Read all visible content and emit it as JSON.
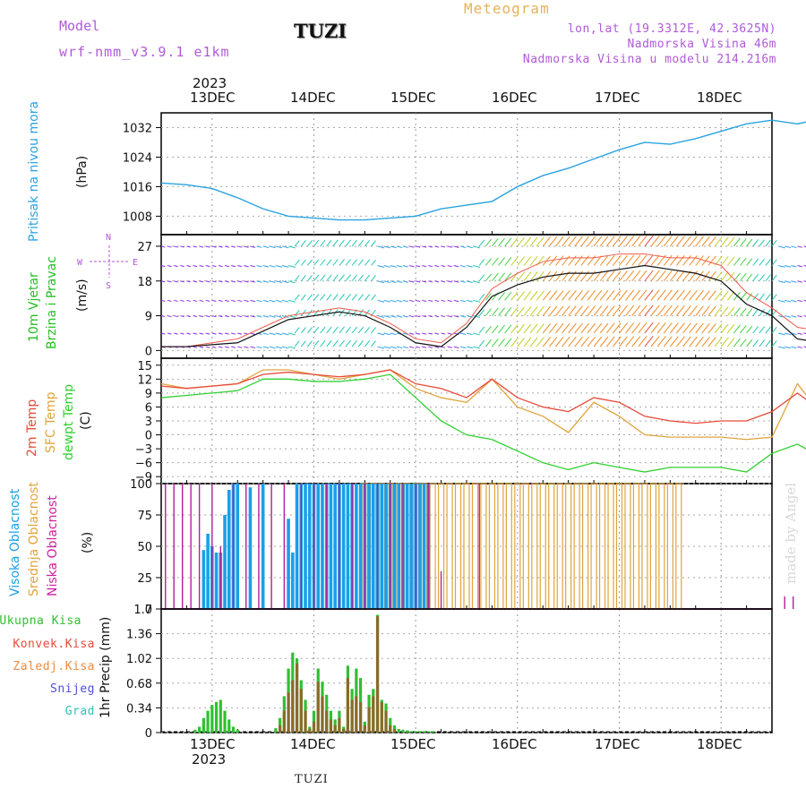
{
  "header": {
    "model_label": "Model",
    "model_name": "wrf-nmm_v3.9.1 e1km",
    "station": "TUZI",
    "meteogram": "Meteogram",
    "lonlat": "lon,lat (19.3312E, 42.3625N)",
    "elevation": "Nadmorska Visina 46m",
    "model_elevation": "Nadmorska Visina u modelu 214.216m"
  },
  "colors": {
    "pressure": "#29a3e0",
    "wind_label": "#22c022",
    "temp2m": "#e84a3a",
    "sfc": "#e0a43c",
    "dewpt": "#30d030",
    "high_cloud": "#1aa0e8",
    "mid_cloud": "#e0a43c",
    "low_cloud": "#b41e9a",
    "purple_text": "#b05ad8"
  },
  "time_axis": {
    "year": "2023",
    "dates": [
      "13DEC",
      "14DEC",
      "15DEC",
      "16DEC",
      "17DEC",
      "18DEC"
    ],
    "start_hours_before_13DEC": 12,
    "end_hours_after_18DEC": 12
  },
  "footer": {
    "station": "TUZI",
    "credit": "made by Angel"
  },
  "chart_data": [
    {
      "type": "line",
      "name": "pressure",
      "ylabel_main": "Pritisak na nivou mora",
      "ylabel_unit": "(hPa)",
      "ylim": [
        1003,
        1036
      ],
      "yticks": [
        1008,
        1016,
        1024,
        1032
      ],
      "x": [
        -12,
        -6,
        0,
        6,
        12,
        18,
        24,
        30,
        36,
        42,
        48,
        54,
        60,
        66,
        72,
        78,
        84,
        90,
        96,
        102,
        108,
        114,
        120,
        126,
        132,
        138,
        144,
        150,
        156,
        162,
        168
      ],
      "values": [
        1017,
        1016.5,
        1015.5,
        1013,
        1010,
        1008,
        1007.5,
        1007,
        1007,
        1007.5,
        1008,
        1010,
        1011,
        1012,
        1016,
        1019,
        1021,
        1023.5,
        1026,
        1028,
        1027.5,
        1029,
        1031,
        1033,
        1034,
        1033,
        1034.5,
        1035,
        1034.5,
        1034,
        1032
      ]
    },
    {
      "type": "line",
      "name": "wind",
      "ylabel_main": "10m Vjetar",
      "ylabel_sub": "Brzina i Pravac",
      "ylabel_unit": "(m/s)",
      "compass": {
        "n": "N",
        "s": "S",
        "e": "E",
        "w": "W"
      },
      "ylim": [
        -2,
        30
      ],
      "yticks": [
        0,
        9,
        18,
        27
      ],
      "x": [
        -12,
        -6,
        0,
        6,
        12,
        18,
        24,
        30,
        36,
        42,
        48,
        54,
        60,
        66,
        72,
        78,
        84,
        90,
        96,
        102,
        108,
        114,
        120,
        126,
        132,
        138,
        144,
        150,
        156,
        162,
        168
      ],
      "speed": [
        1,
        1,
        1.5,
        2,
        5,
        8,
        9,
        10,
        9,
        6,
        2,
        1,
        6,
        14,
        17,
        19,
        20,
        20,
        21,
        22,
        21,
        20,
        18,
        12,
        9,
        3,
        2,
        9,
        5,
        2,
        1
      ],
      "gust": [
        1,
        1,
        2,
        3,
        6,
        9,
        10,
        11,
        10,
        7,
        3,
        2,
        7,
        16,
        20,
        23,
        24,
        24,
        25,
        25,
        24,
        24,
        22,
        15,
        11,
        6,
        5,
        14,
        8,
        3,
        2
      ]
    },
    {
      "type": "line",
      "name": "temperature",
      "ylabel_series": [
        "2m Temp",
        "SFC Temp",
        "dewpt Temp"
      ],
      "ylabel_unit": "(C)",
      "ylim": [
        -10.5,
        16.5
      ],
      "yticks": [
        -9,
        -6,
        -3,
        0,
        3,
        6,
        9,
        12,
        15
      ],
      "x": [
        -12,
        -6,
        0,
        6,
        12,
        18,
        24,
        30,
        36,
        42,
        48,
        54,
        60,
        66,
        72,
        78,
        84,
        90,
        96,
        102,
        108,
        114,
        120,
        126,
        132,
        138,
        144,
        150,
        156,
        162,
        168
      ],
      "t2m": [
        10.5,
        10,
        10.5,
        11,
        13,
        13.5,
        13,
        12.5,
        13,
        14,
        11,
        10,
        8,
        12,
        8,
        6,
        5,
        8,
        7,
        4,
        3,
        2.5,
        3,
        3,
        5,
        9,
        5,
        3,
        2.5,
        4,
        8
      ],
      "tsfc": [
        11,
        10,
        10.5,
        11,
        14,
        14,
        13,
        12,
        13,
        14,
        10,
        8,
        7,
        12,
        6,
        4,
        0.5,
        7,
        4,
        0,
        -0.5,
        -0.5,
        -0.5,
        -1,
        -0.5,
        11,
        4,
        1,
        -1,
        -1,
        11
      ],
      "dewpt": [
        8,
        8.5,
        9,
        9.5,
        12,
        12,
        11.5,
        11.5,
        12,
        13,
        8,
        3,
        0,
        -1,
        -3.5,
        -6,
        -7.5,
        -6,
        -7,
        -8,
        -7,
        -7,
        -7,
        -8,
        -4,
        -2,
        -5,
        -7,
        -8,
        0,
        -1
      ]
    },
    {
      "type": "bar",
      "name": "cloud_cover",
      "ylabel_series": [
        "Visoka Oblacnost",
        "Srednja Oblacnost",
        "Niska Oblacnost"
      ],
      "ylabel_unit": "(%)",
      "ylim": [
        0,
        100
      ],
      "yticks": [
        0,
        25,
        50,
        75,
        100
      ],
      "high": {
        "x": [
          -2,
          -1,
          0,
          1,
          2,
          3,
          4,
          5,
          6,
          9,
          12,
          18,
          19,
          20,
          21,
          22,
          23,
          24,
          25,
          26,
          27,
          28,
          29,
          30,
          31,
          32,
          33,
          34,
          35,
          36,
          37,
          38,
          39,
          40,
          41,
          42,
          43,
          44,
          45,
          46,
          47,
          48,
          49,
          50,
          51
        ],
        "values": [
          47,
          60,
          50,
          45,
          45,
          75,
          95,
          100,
          100,
          97,
          100,
          72,
          45,
          100,
          100,
          100,
          100,
          100,
          100,
          100,
          100,
          100,
          100,
          100,
          100,
          100,
          100,
          100,
          100,
          100,
          100,
          100,
          100,
          100,
          100,
          100,
          100,
          100,
          100,
          100,
          100,
          100,
          100,
          100,
          100
        ]
      },
      "mid": {
        "x": [
          36,
          38,
          40,
          42,
          44,
          46,
          48,
          50,
          52,
          54,
          56,
          58,
          60,
          62,
          64,
          66,
          68,
          70,
          72,
          74,
          76,
          78,
          80,
          82,
          84,
          86,
          88,
          90,
          92,
          94,
          96,
          98,
          100,
          102,
          104,
          106,
          108,
          110
        ],
        "values": [
          100,
          100,
          100,
          100,
          100,
          100,
          100,
          100,
          100,
          100,
          100,
          100,
          100,
          100,
          100,
          100,
          100,
          100,
          100,
          100,
          100,
          100,
          100,
          100,
          100,
          100,
          100,
          100,
          100,
          100,
          100,
          100,
          100,
          100,
          100,
          100,
          100,
          100
        ]
      },
      "low": {
        "x": [
          -11,
          -9,
          -7,
          -5,
          -3,
          0,
          2,
          5,
          8,
          11,
          14,
          17,
          21,
          24,
          27,
          30,
          33,
          36,
          39,
          42,
          45,
          48,
          51,
          54,
          63,
          135,
          137,
          141
        ],
        "values": [
          100,
          100,
          100,
          100,
          100,
          100,
          50,
          100,
          100,
          100,
          100,
          100,
          100,
          100,
          100,
          100,
          100,
          100,
          100,
          100,
          100,
          100,
          100,
          30,
          100,
          10,
          10,
          10
        ]
      }
    },
    {
      "type": "bar",
      "name": "precip",
      "ylabel": "1hr Precip (mm)",
      "legend": [
        "Ukupna Kisa",
        "Konvek.Kisa",
        "Zaledj.Kisa",
        "Snijeg",
        "Grad"
      ],
      "legend_colors": [
        "#30c030",
        "#e84a3a",
        "#f08a3a",
        "#5050d8",
        "#30c0b8"
      ],
      "ylim": [
        0,
        1.7
      ],
      "yticks": [
        0,
        0.34,
        0.68,
        1.02,
        1.36,
        1.7
      ],
      "x": [
        -4,
        -3,
        -2,
        -1,
        0,
        1,
        2,
        3,
        4,
        5,
        6,
        15,
        16,
        17,
        18,
        19,
        20,
        21,
        22,
        23,
        24,
        25,
        26,
        27,
        28,
        29,
        30,
        31,
        32,
        33,
        34,
        35,
        36,
        37,
        38,
        39,
        40,
        41,
        42,
        43,
        44,
        45,
        46,
        47,
        48,
        49,
        50,
        51,
        52
      ],
      "total": [
        0.04,
        0.08,
        0.2,
        0.3,
        0.38,
        0.42,
        0.45,
        0.3,
        0.18,
        0.08,
        0.04,
        0.06,
        0.2,
        0.5,
        0.88,
        1.1,
        1.02,
        0.72,
        0.45,
        0.08,
        0.3,
        0.88,
        0.7,
        0.52,
        0.3,
        0.18,
        0.3,
        0.08,
        0.92,
        0.6,
        0.88,
        0.75,
        0.15,
        0.52,
        0.6,
        1.62,
        0.45,
        0.4,
        0.2,
        0.1,
        0.05,
        0.04,
        0.03,
        0.02,
        0.02,
        0.02,
        0.02,
        0.02,
        0.02
      ],
      "conv": [
        0,
        0,
        0,
        0,
        0,
        0,
        0,
        0,
        0,
        0,
        0,
        0,
        0.1,
        0.3,
        0.55,
        0.72,
        0.95,
        0.6,
        0.3,
        0.05,
        0.15,
        0.7,
        0.5,
        0.3,
        0.18,
        0.1,
        0.2,
        0.05,
        0.75,
        0.45,
        0.5,
        0.42,
        0.1,
        0.35,
        0.5,
        1.6,
        0.42,
        0.3,
        0.1,
        0.05,
        0,
        0,
        0,
        0,
        0,
        0,
        0,
        0,
        0
      ]
    }
  ]
}
